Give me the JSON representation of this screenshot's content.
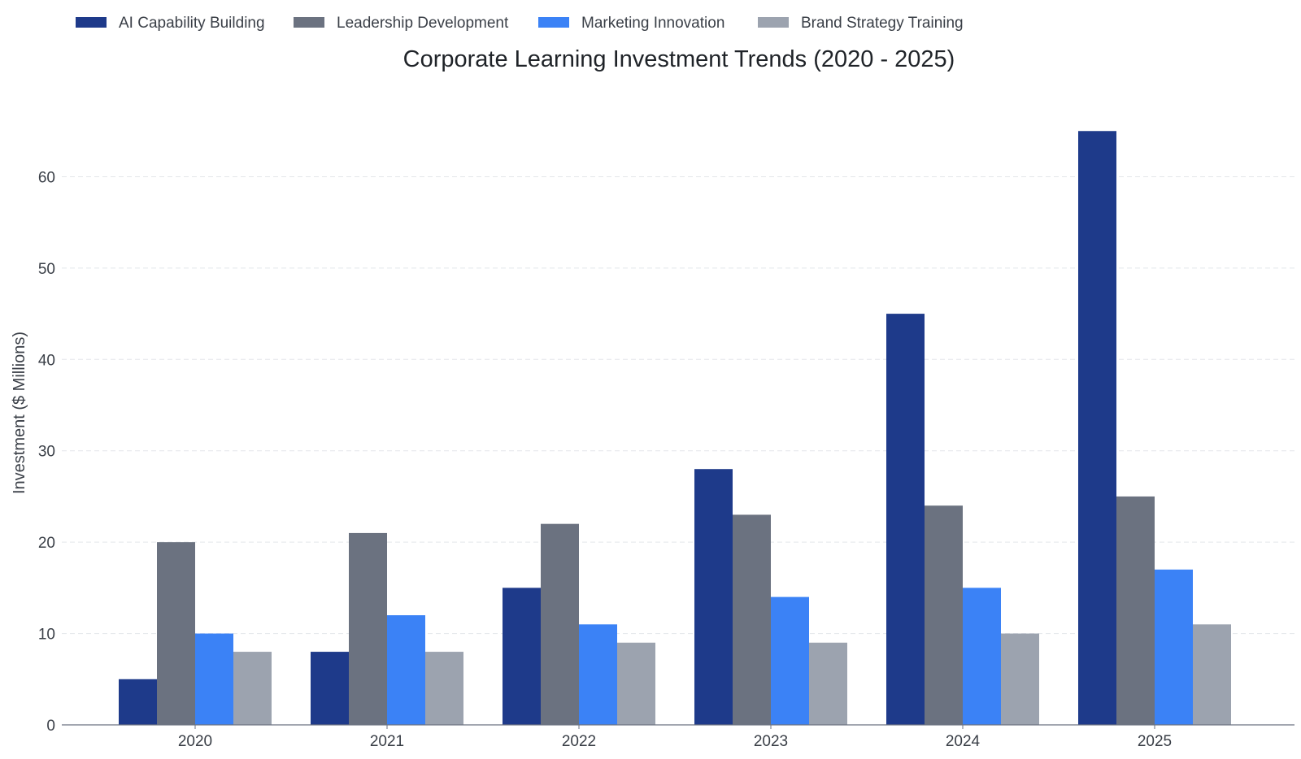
{
  "chart_data": {
    "type": "bar",
    "title": "Corporate Learning Investment Trends (2020 - 2025)",
    "xlabel": "",
    "ylabel": "Investment ($ Millions)",
    "categories": [
      "2020",
      "2021",
      "2022",
      "2023",
      "2024",
      "2025"
    ],
    "series": [
      {
        "name": "AI Capability Building",
        "color": "#1e3a8a",
        "values": [
          5,
          8,
          15,
          28,
          45,
          65
        ]
      },
      {
        "name": "Leadership Development",
        "color": "#6b7280",
        "values": [
          20,
          21,
          22,
          23,
          24,
          25
        ]
      },
      {
        "name": "Marketing Innovation",
        "color": "#3b82f6",
        "values": [
          10,
          12,
          11,
          14,
          15,
          17
        ]
      },
      {
        "name": "Brand Strategy Training",
        "color": "#9ca3af",
        "values": [
          8,
          8,
          9,
          9,
          10,
          11
        ]
      }
    ],
    "ylim": [
      0,
      66
    ],
    "yticks": [
      0,
      10,
      20,
      30,
      40,
      50,
      60
    ],
    "grid": true,
    "legend_position": "top-left"
  }
}
